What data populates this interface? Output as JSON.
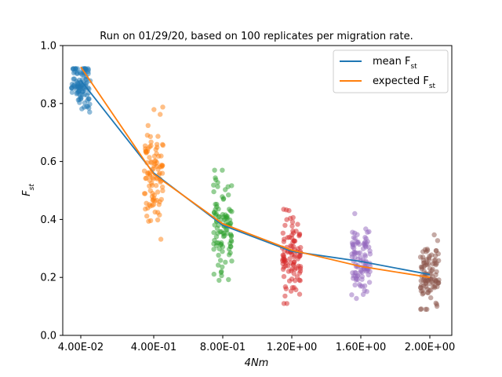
{
  "chart_data": {
    "type": "scatter",
    "title": "Run on 01/29/20, based on 100 replicates per migration rate.",
    "xlabel": "4Nm",
    "ylabel": "Fst",
    "ylim": [
      0,
      1.0
    ],
    "yticks": [
      "0.0",
      "0.2",
      "0.4",
      "0.6",
      "0.8",
      "1.0"
    ],
    "categories": [
      "4.00E-02",
      "4.00E-01",
      "8.00E-01",
      "1.20E+00",
      "1.60E+00",
      "2.00E+00"
    ],
    "legend": {
      "placement": "top-right"
    },
    "series": [
      {
        "name": "mean F_st",
        "type": "line",
        "color": "#1f77b4",
        "values": [
          0.88,
          0.56,
          0.38,
          0.29,
          0.255,
          0.21
        ]
      },
      {
        "name": "expected F_st",
        "type": "line",
        "color": "#ff7f0e",
        "values": [
          0.926,
          0.556,
          0.385,
          0.294,
          0.238,
          0.2
        ]
      }
    ],
    "scatter_groups": [
      {
        "category": "4.00E-02",
        "color": "#1f77b4",
        "center": 0.87,
        "spread": 0.05,
        "min": 0.73,
        "max": 0.92,
        "n": 100
      },
      {
        "category": "4.00E-01",
        "color": "#ff7f0e",
        "center": 0.55,
        "spread": 0.09,
        "min": 0.33,
        "max": 0.79,
        "n": 100
      },
      {
        "category": "8.00E-01",
        "color": "#2ca02c",
        "center": 0.38,
        "spread": 0.08,
        "min": 0.19,
        "max": 0.57,
        "n": 100
      },
      {
        "category": "1.20E+00",
        "color": "#d62728",
        "center": 0.29,
        "spread": 0.07,
        "min": 0.11,
        "max": 0.49,
        "n": 100
      },
      {
        "category": "1.60E+00",
        "color": "#9467bd",
        "center": 0.25,
        "spread": 0.06,
        "min": 0.1,
        "max": 0.42,
        "n": 100
      },
      {
        "category": "2.00E+00",
        "color": "#8c564b",
        "center": 0.2,
        "spread": 0.06,
        "min": 0.09,
        "max": 0.37,
        "n": 100
      }
    ]
  }
}
